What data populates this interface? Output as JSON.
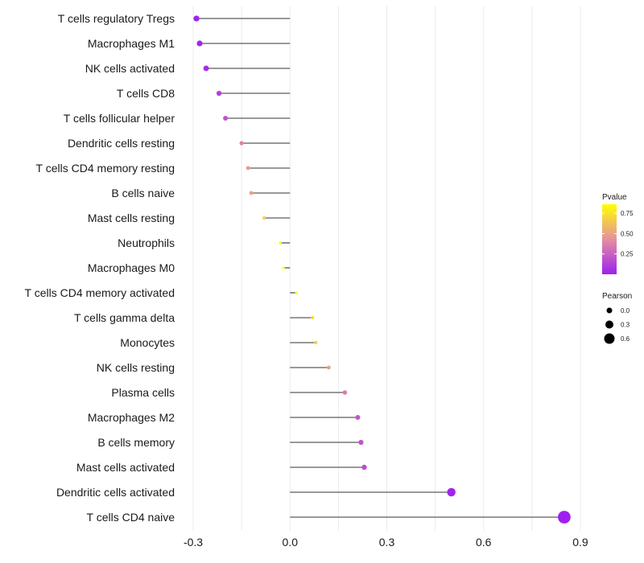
{
  "chart_data": {
    "type": "lollipop",
    "title": "",
    "xlabel": "",
    "ylabel": "",
    "xlim": [
      -0.33,
      0.93
    ],
    "x_ticks": [
      -0.3,
      0.0,
      0.3,
      0.6,
      0.9
    ],
    "x_tick_labels": [
      "-0.3",
      "0.0",
      "0.3",
      "0.6",
      "0.9"
    ],
    "categories": [
      "T cells regulatory  Tregs",
      "Macrophages M1",
      "NK cells activated",
      "T cells CD8",
      "T cells follicular helper",
      "Dendritic cells resting",
      "T cells CD4 memory resting",
      "B cells naive",
      "Mast cells resting",
      "Neutrophils",
      "Macrophages M0",
      "T cells CD4 memory activated",
      "T cells gamma delta",
      "Monocytes",
      "NK cells resting",
      "Plasma cells",
      "Macrophages M2",
      "B cells memory",
      "Mast cells activated",
      "Dendritic cells activated",
      "T cells CD4 naive"
    ],
    "values": [
      -0.29,
      -0.28,
      -0.26,
      -0.22,
      -0.2,
      -0.15,
      -0.13,
      -0.12,
      -0.08,
      -0.03,
      -0.02,
      0.02,
      0.07,
      0.08,
      0.12,
      0.17,
      0.21,
      0.22,
      0.23,
      0.5,
      0.85
    ],
    "pvalues": [
      0.01,
      0.02,
      0.05,
      0.12,
      0.2,
      0.38,
      0.48,
      0.5,
      0.68,
      0.92,
      0.97,
      0.95,
      0.72,
      0.7,
      0.5,
      0.36,
      0.22,
      0.2,
      0.18,
      0.02,
      0.0
    ],
    "legend_pvalue": {
      "title": "Pvalue",
      "ticks": [
        0.25,
        0.5,
        0.75
      ],
      "tick_labels": [
        "0.25",
        "0.50",
        "0.75"
      ],
      "range": [
        0.0,
        0.86
      ],
      "color_low": "#a020f0",
      "color_mid": "#e58fa0",
      "color_high": "#ffff00",
      "placement": "right"
    },
    "legend_pearson": {
      "title": "Pearson",
      "values": [
        0.0,
        0.3,
        0.6
      ],
      "labels": [
        "0.0",
        "0.3",
        "0.6"
      ],
      "placement": "right"
    },
    "colors": {
      "gridline": "#ebebeb",
      "stem": "#333333",
      "legend_dot": "#000000"
    }
  }
}
